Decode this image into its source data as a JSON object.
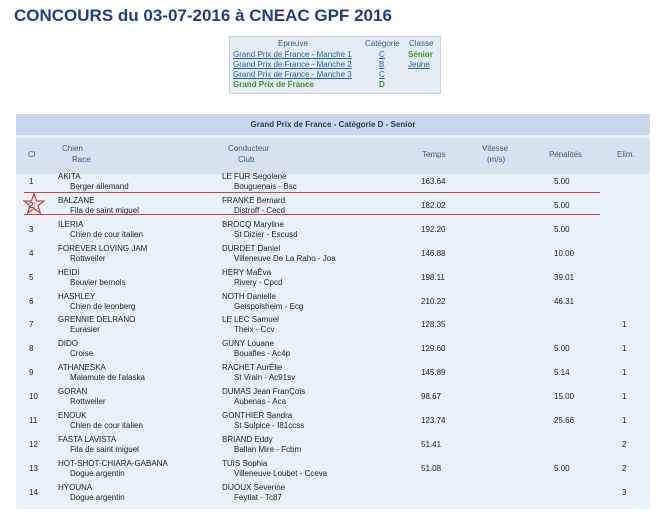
{
  "page": {
    "title": "CONCOURS du 03-07-2016 à CNEAC GPF 2016"
  },
  "epreuves": {
    "headers": {
      "epreuve": "Epreuve",
      "categorie": "Catégorie",
      "classe": "Classe"
    },
    "rows": [
      {
        "name": "Grand Prix de France - Manche 1",
        "cat": "C",
        "classe": "Sénior",
        "link": true
      },
      {
        "name": "Grand Prix de France - Manche 2",
        "cat": "B",
        "classe": "Jeune",
        "link": true
      },
      {
        "name": "Grand Prix de France - Manche 3",
        "cat": "C",
        "classe": "",
        "link": true
      },
      {
        "name": "Grand Prix de France",
        "cat": "D",
        "classe": "",
        "link": false
      }
    ]
  },
  "table": {
    "title": "Grand Prix de France - Catégorie D - Senior",
    "headers": {
      "cl": "Cl",
      "chien": "Chien",
      "race": "Race",
      "conducteur": "Conducteur",
      "club": "Club",
      "temps": "Temps",
      "vitesse": "Vitesse",
      "vitesse_unit": "(m/s)",
      "penalites": "Pénalités",
      "elim": "Elim."
    },
    "rows": [
      {
        "cl": "1",
        "chien": "AKITA",
        "race": "Berger allemand",
        "cond": "LE FUR Segolene",
        "club": "Bouguenais - Bsc",
        "temps": "163.64",
        "pen": "5.00",
        "elim": ""
      },
      {
        "cl": "2",
        "chien": "BALZANE",
        "race": "Fila de saint miguel",
        "cond": "FRANKE Bernard",
        "club": "Distroff - Cecd",
        "temps": "182.02",
        "pen": "5.00",
        "elim": ""
      },
      {
        "cl": "3",
        "chien": "ILERIA",
        "race": "Chien de cour italien",
        "cond": "BROCQ Maryline",
        "club": "St Dizier - Escusd",
        "temps": "192.20",
        "pen": "5.00",
        "elim": ""
      },
      {
        "cl": "4",
        "chien": "FOREVER LOVING JAM",
        "race": "Rottweiler",
        "cond": "DURDET Daniel",
        "club": "Villeneuve De La Raho - Joa",
        "temps": "146.88",
        "pen": "10.00",
        "elim": ""
      },
      {
        "cl": "5",
        "chien": "HEIDI",
        "race": "Bouvier bernois",
        "cond": "HERY MaËva",
        "club": "Rivery - Cpcd",
        "temps": "198.11",
        "pen": "39.01",
        "elim": ""
      },
      {
        "cl": "6",
        "chien": "HASHLEY",
        "race": "Chien de leonberg",
        "cond": "NOTH Danielle",
        "club": "Geispolsheim - Ecg",
        "temps": "210.22",
        "pen": "46.31",
        "elim": ""
      },
      {
        "cl": "7",
        "chien": "GRENNIE DELRANO",
        "race": "Eurasier",
        "cond": "LE LEC Samuel",
        "club": "Theix - Ccv",
        "temps": "128.35",
        "pen": "",
        "elim": "1"
      },
      {
        "cl": "8",
        "chien": "DIDO",
        "race": "Croise",
        "cond": "GUNY Louane",
        "club": "Bouafles - Ac4p",
        "temps": "129.60",
        "pen": "5.00",
        "elim": "1"
      },
      {
        "cl": "9",
        "chien": "ATHANESKA",
        "race": "Malamute de l'alaska",
        "cond": "RACHET AurÉlie",
        "club": "St Vrain - Ac91sv",
        "temps": "145.89",
        "pen": "5.14",
        "elim": "1"
      },
      {
        "cl": "10",
        "chien": "GORAN",
        "race": "Rottweiler",
        "cond": "DUMAS Jean FranÇois",
        "club": "Aubenas - Aca",
        "temps": "98.67",
        "pen": "15.00",
        "elim": "1"
      },
      {
        "cl": "11",
        "chien": "ENOUK",
        "race": "Chien de cour italien",
        "cond": "GONTHIER Sandra",
        "club": "St Sulpice - I81ccss",
        "temps": "123.74",
        "pen": "25.66",
        "elim": "1"
      },
      {
        "cl": "12",
        "chien": "FASTA LAVISTA",
        "race": "Fila de saint miguel",
        "cond": "BRIAND Eddy",
        "club": "Ballan Mire - Fcbm",
        "temps": "51.41",
        "pen": "",
        "elim": "2"
      },
      {
        "cl": "13",
        "chien": "HOT-SHOT-CHIARA-GABANA",
        "race": "Dogue argentin",
        "cond": "TUIS Sophia",
        "club": "Villeneuve Loubet - Cceva",
        "temps": "51.08",
        "pen": "5.00",
        "elim": "2"
      },
      {
        "cl": "14",
        "chien": "HYOUNA",
        "race": "Dogue argentin",
        "cond": "DIJOUX Severine",
        "club": "Feytiat - Tc87",
        "temps": "",
        "pen": "",
        "elim": "3"
      }
    ]
  },
  "colors": {
    "title": "#1f3d8f",
    "link": "#1f5fbf",
    "green": "#3a9a1c",
    "highlight": "#d04040"
  }
}
